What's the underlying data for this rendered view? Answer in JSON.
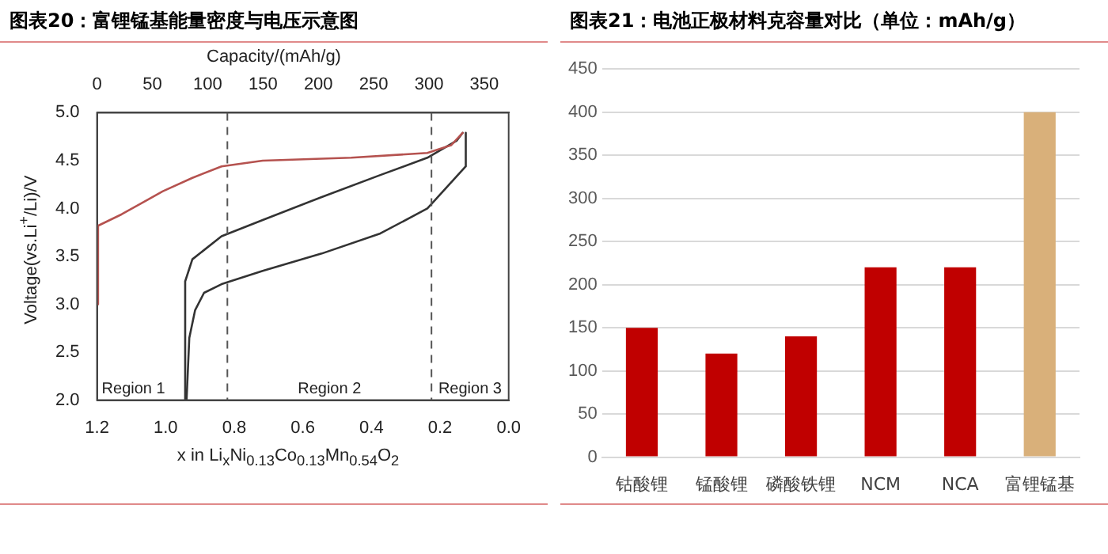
{
  "chart_data": [
    {
      "type": "line",
      "title": "图表20：富锂锰基能量密度与电压示意图",
      "xlabel": "x in Li$_{x}$Ni$_{0.13}$Co$_{0.13}$Mn$_{0.54}$O$_{2}$",
      "ylabel": "Voltage(vs.Li$^{+}$/Li)/V",
      "x2label": "Capacity/(mAh/g)",
      "xlim": [
        1.2,
        0.0
      ],
      "xticks": [
        {
          "value": 1.2,
          "label": "1.2"
        },
        {
          "value": 1.0,
          "label": "1.0"
        },
        {
          "value": 0.8,
          "label": "0.8"
        },
        {
          "value": 0.6,
          "label": "0.6"
        },
        {
          "value": 0.4,
          "label": "0.4"
        },
        {
          "value": 0.2,
          "label": "0.2"
        },
        {
          "value": 0.0,
          "label": "0.0"
        }
      ],
      "x2lim": [
        0,
        372
      ],
      "x2ticks": [
        0,
        50,
        100,
        150,
        200,
        250,
        300,
        350
      ],
      "ylim": [
        2.0,
        5.0
      ],
      "yticks": [
        {
          "value": 2.0,
          "label": "2.0"
        },
        {
          "value": 2.5,
          "label": "2.5"
        },
        {
          "value": 3.0,
          "label": "3.0"
        },
        {
          "value": 3.5,
          "label": "3.5"
        },
        {
          "value": 4.0,
          "label": "4.0"
        },
        {
          "value": 4.5,
          "label": "4.5"
        },
        {
          "value": 5.0,
          "label": "5.0"
        }
      ],
      "grid": false,
      "legend": false,
      "marker": "none",
      "line_style": "solid",
      "series": [
        {
          "color": "#b5524f",
          "x": [
            1.2,
            1.197,
            1.128,
            1.008,
            0.922,
            0.837,
            0.717,
            0.459,
            0.237,
            0.168,
            0.134
          ],
          "values": [
            3.0,
            3.82,
            3.94,
            4.18,
            4.32,
            4.44,
            4.5,
            4.53,
            4.58,
            4.66,
            4.79
          ]
        },
        {
          "color": "#333333",
          "x": [
            0.943,
            0.943,
            0.922,
            0.837,
            0.717,
            0.545,
            0.374,
            0.237,
            0.151,
            0.134
          ],
          "values": [
            2.0,
            3.24,
            3.47,
            3.71,
            3.88,
            4.12,
            4.35,
            4.53,
            4.71,
            4.79
          ]
        },
        {
          "color": "#333333",
          "x": [
            0.125,
            0.125,
            0.237,
            0.374,
            0.545,
            0.717,
            0.837,
            0.888,
            0.914,
            0.931,
            0.939
          ],
          "values": [
            4.79,
            4.44,
            4.0,
            3.74,
            3.53,
            3.35,
            3.21,
            3.12,
            2.94,
            2.65,
            2.0
          ]
        }
      ],
      "ref_lines": [
        {
          "axis": "x",
          "value": 0.82,
          "color": "#555555",
          "line_style": "dashed"
        },
        {
          "axis": "x",
          "value": 0.225,
          "color": "#555555",
          "line_style": "dashed"
        }
      ],
      "annotations": [
        "Region 1",
        "Region 2",
        "Region 3"
      ]
    },
    {
      "type": "bar",
      "title": "图表21：电池正极材料克容量对比（单位：mAh/g）",
      "categories": [
        "钴酸锂",
        "锰酸锂",
        "磷酸铁锂",
        "NCM",
        "NCA",
        "富锂锰基"
      ],
      "values": [
        150,
        120,
        140,
        220,
        220,
        400
      ],
      "colors": [
        "#c00000",
        "#c00000",
        "#c00000",
        "#c00000",
        "#c00000",
        "#d9b07a"
      ],
      "ylim": [
        0,
        450
      ],
      "yticks": [
        0,
        50,
        100,
        150,
        200,
        250,
        300,
        350,
        400,
        450
      ],
      "grid": "y",
      "legend": false
    }
  ]
}
